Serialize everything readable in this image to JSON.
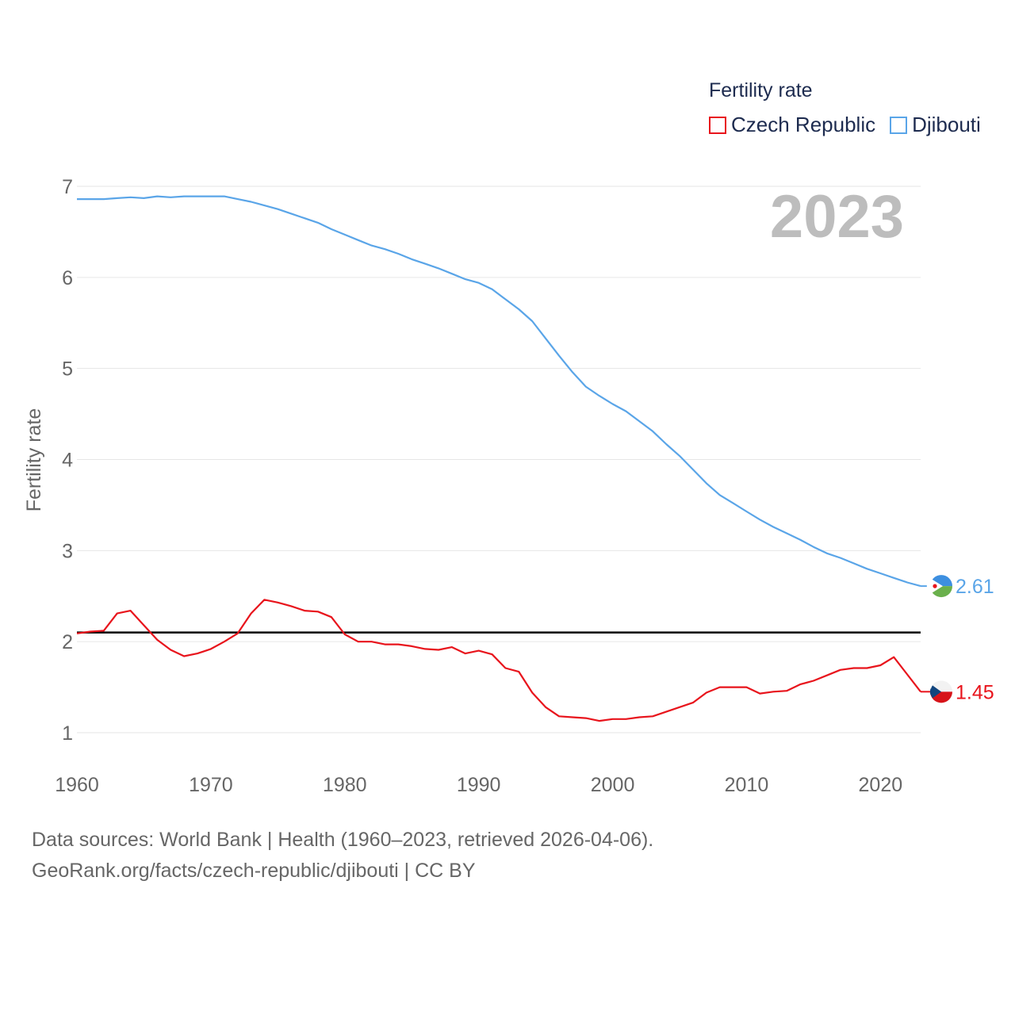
{
  "legend": {
    "title": "Fertility rate",
    "items": [
      {
        "label": "Czech Republic",
        "color": "#e8141c"
      },
      {
        "label": "Djibouti",
        "color": "#5aa5e8"
      }
    ]
  },
  "source": {
    "line1": "Data sources: World Bank | Health (1960–2023, retrieved 2026-04-06).",
    "line2": "GeoRank.org/facts/czech-republic/djibouti | CC BY"
  },
  "chart_data": {
    "type": "line",
    "title": "Fertility rate",
    "ylabel": "Fertility rate",
    "xlabel": "",
    "year_label": "2023",
    "xlim": [
      1960,
      2023
    ],
    "ylim": [
      0.6,
      7.3
    ],
    "yticks": [
      1,
      2,
      3,
      4,
      5,
      6,
      7
    ],
    "xticks": [
      1960,
      1970,
      1980,
      1990,
      2000,
      2010,
      2020
    ],
    "reference_line": {
      "value": 2.1,
      "color": "#000000"
    },
    "x": [
      1960,
      1961,
      1962,
      1963,
      1964,
      1965,
      1966,
      1967,
      1968,
      1969,
      1970,
      1971,
      1972,
      1973,
      1974,
      1975,
      1976,
      1977,
      1978,
      1979,
      1980,
      1981,
      1982,
      1983,
      1984,
      1985,
      1986,
      1987,
      1988,
      1989,
      1990,
      1991,
      1992,
      1993,
      1994,
      1995,
      1996,
      1997,
      1998,
      1999,
      2000,
      2001,
      2002,
      2003,
      2004,
      2005,
      2006,
      2007,
      2008,
      2009,
      2010,
      2011,
      2012,
      2013,
      2014,
      2015,
      2016,
      2017,
      2018,
      2019,
      2020,
      2021,
      2022,
      2023
    ],
    "series": [
      {
        "name": "Czech Republic",
        "color": "#e8141c",
        "end_label": "1.45",
        "values": [
          2.09,
          2.11,
          2.12,
          2.31,
          2.34,
          2.18,
          2.02,
          1.91,
          1.84,
          1.87,
          1.92,
          2.0,
          2.09,
          2.31,
          2.46,
          2.43,
          2.39,
          2.34,
          2.33,
          2.27,
          2.08,
          2.0,
          2.0,
          1.97,
          1.97,
          1.95,
          1.92,
          1.91,
          1.94,
          1.87,
          1.9,
          1.86,
          1.71,
          1.67,
          1.44,
          1.28,
          1.18,
          1.17,
          1.16,
          1.13,
          1.15,
          1.15,
          1.17,
          1.18,
          1.23,
          1.28,
          1.33,
          1.44,
          1.5,
          1.5,
          1.5,
          1.43,
          1.45,
          1.46,
          1.53,
          1.57,
          1.63,
          1.69,
          1.71,
          1.71,
          1.74,
          1.83,
          1.64,
          1.45
        ]
      },
      {
        "name": "Djibouti",
        "color": "#5aa5e8",
        "end_label": "2.61",
        "values": [
          6.86,
          6.86,
          6.86,
          6.87,
          6.88,
          6.87,
          6.89,
          6.88,
          6.89,
          6.89,
          6.89,
          6.89,
          6.86,
          6.83,
          6.79,
          6.75,
          6.7,
          6.65,
          6.6,
          6.53,
          6.47,
          6.41,
          6.35,
          6.31,
          6.26,
          6.2,
          6.15,
          6.1,
          6.04,
          5.98,
          5.94,
          5.87,
          5.76,
          5.65,
          5.52,
          5.33,
          5.14,
          4.96,
          4.8,
          4.7,
          4.61,
          4.53,
          4.42,
          4.31,
          4.17,
          4.04,
          3.89,
          3.74,
          3.61,
          3.52,
          3.43,
          3.34,
          3.26,
          3.19,
          3.12,
          3.04,
          2.97,
          2.92,
          2.86,
          2.8,
          2.75,
          2.7,
          2.65,
          2.61
        ]
      }
    ]
  }
}
